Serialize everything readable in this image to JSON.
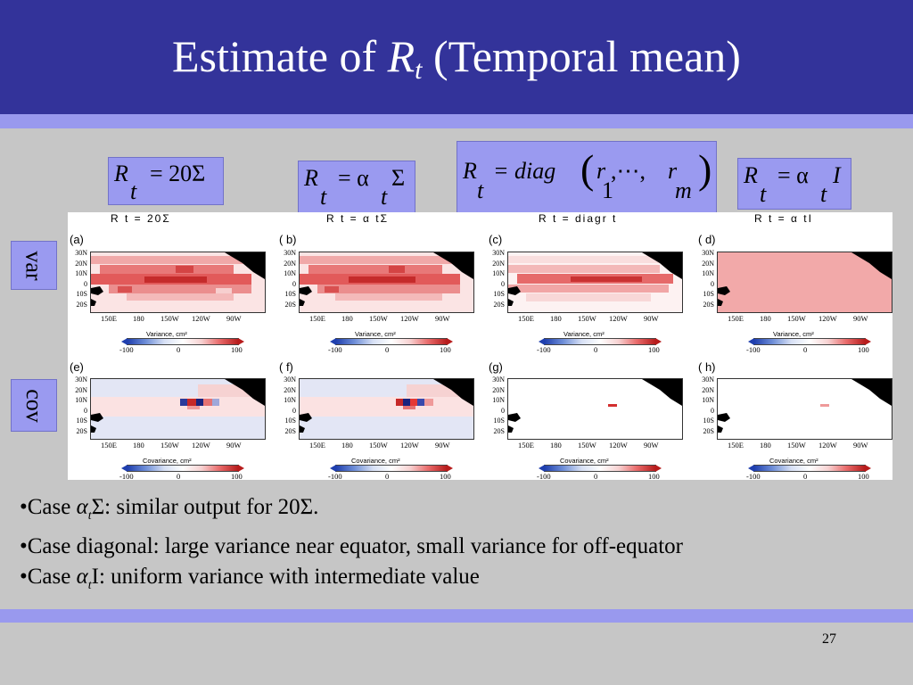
{
  "slide": {
    "title_prefix": "Estimate of ",
    "title_var": "R",
    "title_sub": "t",
    "title_suffix": " (Temporal mean)",
    "page_number": "27"
  },
  "formulas": [
    {
      "lhs": "R",
      "lhs_sub": "t",
      "rhs": "= 20Σ"
    },
    {
      "lhs": "R",
      "lhs_sub": "t",
      "rhs_a": "= α",
      "rhs_a_sub": "t",
      "rhs_b": "Σ"
    },
    {
      "lhs": "R",
      "lhs_sub": "t",
      "rhs_a": "= diag",
      "rhs_open": "(",
      "r1": "r",
      "r1_sub": "1",
      "dots": ",⋯,",
      "r2": "r",
      "r2_sub": "m",
      "rhs_close": ")"
    },
    {
      "lhs": "R",
      "lhs_sub": "t",
      "rhs_a": "= α",
      "rhs_a_sub": "t",
      "rhs_b": "I"
    }
  ],
  "row_labels": {
    "var": "var",
    "cov": "cov"
  },
  "figure": {
    "column_titles": [
      "R t = 20Σ",
      "R  t = α tΣ",
      "R  t = diagr t",
      "R t = α tI"
    ],
    "panel_labels": [
      "(a)",
      "( b)",
      "(c)",
      "( d)",
      "(e)",
      "( f)",
      "(g)",
      "( h)"
    ],
    "lat_ticks": [
      "30N",
      "20N",
      "10N",
      "0",
      "10S",
      "20S"
    ],
    "lon_ticks": [
      "150E",
      "180",
      "150W",
      "120W",
      "90W"
    ],
    "var_axis_label": "Variance, cm²",
    "cov_axis_label": "Covariance, cm²",
    "colorbar_ticks": [
      "-100",
      "0",
      "100"
    ],
    "colors": {
      "high": "#d93a3a",
      "mid": "#f3b3b3",
      "low": "#fbe4e4",
      "neg": "#dfe3f4",
      "land": "#000000"
    }
  },
  "bullets": {
    "b1_prefix": "•Case ",
    "b1_alpha": "α",
    "b1_sub": "t",
    "b1_rest": "Σ: similar output for 20Σ.",
    "b2": "•Case diagonal: large variance near equator, small variance for off-equator",
    "b3_prefix": "•Case ",
    "b3_alpha": "α",
    "b3_sub": "t",
    "b3_rest": "I: uniform variance with intermediate value"
  }
}
